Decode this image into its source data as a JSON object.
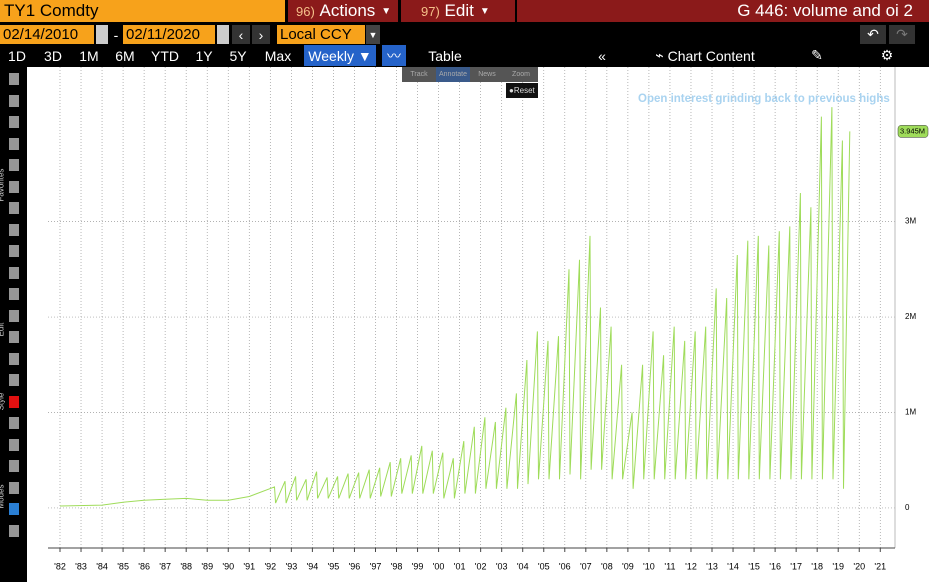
{
  "toolbar": {
    "ticker": "TY1 Comdty",
    "actions_num": "96)",
    "actions": "Actions",
    "edit_num": "97)",
    "edit": "Edit",
    "page_title": "G 446: volume and oi 2",
    "start_date": "02/14/2010",
    "date_sep": "-",
    "end_date": "02/11/2020",
    "currency": "Local CCY",
    "ranges": [
      "1D",
      "3D",
      "1M",
      "6M",
      "YTD",
      "1Y",
      "5Y",
      "Max"
    ],
    "frequency": "Weekly ▼",
    "table": "Table",
    "chart_content": "Chart Content",
    "mini": [
      "Track",
      "Annotate",
      "News",
      "Zoom"
    ],
    "reset": "Reset",
    "side_labels": [
      "Favorites",
      "Edit",
      "Style",
      "Modes"
    ]
  },
  "chart_data": {
    "type": "line",
    "annotation": "Open interest grinding back to previous highs",
    "last_value_label": "3.945M",
    "grid": true,
    "xlim": [
      1981.43,
      2021.7
    ],
    "ylim": [
      -0.42,
      4.62
    ],
    "xticks": [
      {
        "value": 1982,
        "label": "'82"
      },
      {
        "value": 1983,
        "label": "'83"
      },
      {
        "value": 1984,
        "label": "'84"
      },
      {
        "value": 1985,
        "label": "'85"
      },
      {
        "value": 1986,
        "label": "'86"
      },
      {
        "value": 1987,
        "label": "'87"
      },
      {
        "value": 1988,
        "label": "'88"
      },
      {
        "value": 1989,
        "label": "'89"
      },
      {
        "value": 1990,
        "label": "'90"
      },
      {
        "value": 1991,
        "label": "'91"
      },
      {
        "value": 1992,
        "label": "'92"
      },
      {
        "value": 1993,
        "label": "'93"
      },
      {
        "value": 1994,
        "label": "'94"
      },
      {
        "value": 1995,
        "label": "'95"
      },
      {
        "value": 1996,
        "label": "'96"
      },
      {
        "value": 1997,
        "label": "'97"
      },
      {
        "value": 1998,
        "label": "'98"
      },
      {
        "value": 1999,
        "label": "'99"
      },
      {
        "value": 2000,
        "label": "'00"
      },
      {
        "value": 2001,
        "label": "'01"
      },
      {
        "value": 2002,
        "label": "'02"
      },
      {
        "value": 2003,
        "label": "'03"
      },
      {
        "value": 2004,
        "label": "'04"
      },
      {
        "value": 2005,
        "label": "'05"
      },
      {
        "value": 2006,
        "label": "'06"
      },
      {
        "value": 2007,
        "label": "'07"
      },
      {
        "value": 2008,
        "label": "'08"
      },
      {
        "value": 2009,
        "label": "'09"
      },
      {
        "value": 2010,
        "label": "'10"
      },
      {
        "value": 2011,
        "label": "'11"
      },
      {
        "value": 2012,
        "label": "'12"
      },
      {
        "value": 2013,
        "label": "'13"
      },
      {
        "value": 2014,
        "label": "'14"
      },
      {
        "value": 2015,
        "label": "'15"
      },
      {
        "value": 2016,
        "label": "'16"
      },
      {
        "value": 2017,
        "label": "'17"
      },
      {
        "value": 2018,
        "label": "'18"
      },
      {
        "value": 2019,
        "label": "'19"
      },
      {
        "value": 2020,
        "label": "'20"
      },
      {
        "value": 2021,
        "label": "'21"
      }
    ],
    "yticks": [
      0,
      {
        "value": 1,
        "label": "1M"
      },
      {
        "value": 2,
        "label": "2M"
      },
      {
        "value": 3,
        "label": "3M"
      }
    ],
    "series": [
      {
        "name": "Open Interest",
        "color": "#9fdc5a",
        "x": [
          1982,
          1984,
          1985,
          1986,
          1987,
          1988,
          1989,
          1990,
          1991,
          1992.2,
          1992.25,
          1992.7,
          1992.75,
          1993.2,
          1993.25,
          1993.7,
          1993.75,
          1994.2,
          1994.25,
          1994.7,
          1994.75,
          1995.2,
          1995.25,
          1995.7,
          1995.75,
          1996.2,
          1996.25,
          1996.7,
          1996.75,
          1997.2,
          1997.25,
          1997.7,
          1997.75,
          1998.2,
          1998.25,
          1998.7,
          1998.75,
          1999.2,
          1999.25,
          1999.7,
          1999.75,
          2000.2,
          2000.25,
          2000.7,
          2000.75,
          2001.2,
          2001.25,
          2001.7,
          2001.75,
          2002.2,
          2002.25,
          2002.7,
          2002.75,
          2003.2,
          2003.25,
          2003.7,
          2003.75,
          2004.2,
          2004.25,
          2004.7,
          2004.75,
          2005.2,
          2005.25,
          2005.7,
          2005.75,
          2006.2,
          2006.25,
          2006.7,
          2006.75,
          2007.2,
          2007.25,
          2007.7,
          2007.75,
          2008.2,
          2008.25,
          2008.7,
          2008.75,
          2009.2,
          2009.25,
          2009.7,
          2009.75,
          2010.2,
          2010.25,
          2010.7,
          2010.75,
          2011.2,
          2011.25,
          2011.7,
          2011.75,
          2012.2,
          2012.25,
          2012.7,
          2012.75,
          2013.2,
          2013.25,
          2013.7,
          2013.75,
          2014.2,
          2014.25,
          2014.7,
          2014.75,
          2015.2,
          2015.25,
          2015.7,
          2015.75,
          2016.2,
          2016.25,
          2016.7,
          2016.75,
          2017.2,
          2017.25,
          2017.7,
          2017.75,
          2018.2,
          2018.25,
          2018.7,
          2018.75,
          2019.2,
          2019.25,
          2019.55
        ],
        "values": [
          0.02,
          0.03,
          0.06,
          0.08,
          0.09,
          0.1,
          0.08,
          0.08,
          0.12,
          0.22,
          0.05,
          0.28,
          0.05,
          0.33,
          0.08,
          0.3,
          0.08,
          0.38,
          0.1,
          0.32,
          0.1,
          0.33,
          0.1,
          0.36,
          0.1,
          0.37,
          0.1,
          0.4,
          0.1,
          0.42,
          0.12,
          0.48,
          0.12,
          0.52,
          0.15,
          0.55,
          0.15,
          0.65,
          0.15,
          0.6,
          0.15,
          0.58,
          0.1,
          0.52,
          0.1,
          0.7,
          0.15,
          0.85,
          0.15,
          0.95,
          0.2,
          0.9,
          0.2,
          1.05,
          0.2,
          1.2,
          0.2,
          1.55,
          0.25,
          1.85,
          0.3,
          1.75,
          0.3,
          1.8,
          0.3,
          2.5,
          0.35,
          2.6,
          0.3,
          2.85,
          0.4,
          2.1,
          0.4,
          1.9,
          0.3,
          1.5,
          0.3,
          1.0,
          0.2,
          1.5,
          0.3,
          1.85,
          0.3,
          1.6,
          0.3,
          1.9,
          0.3,
          1.75,
          0.3,
          1.85,
          0.3,
          1.9,
          0.3,
          2.3,
          0.3,
          2.2,
          0.3,
          2.65,
          0.3,
          2.8,
          0.3,
          2.85,
          0.3,
          2.75,
          0.3,
          2.9,
          0.3,
          2.95,
          0.3,
          3.3,
          0.3,
          3.15,
          0.3,
          4.1,
          0.3,
          4.2,
          0.3,
          3.85,
          0.2,
          3.945
        ]
      }
    ]
  }
}
